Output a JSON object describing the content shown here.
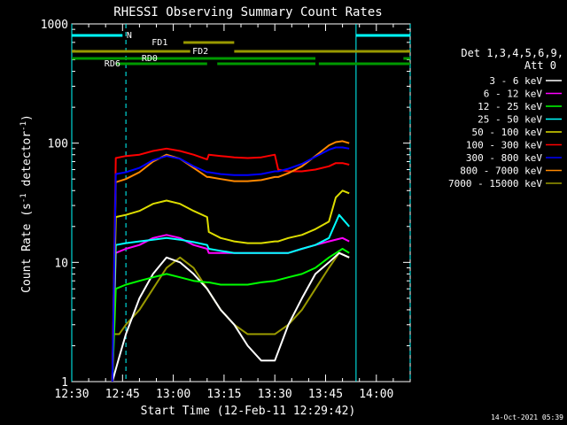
{
  "chart_data": {
    "type": "line",
    "title": "RHESSI Observing Summary Count Rates",
    "xlabel": "Start Time (12-Feb-11 12:29:42)",
    "ylabel_parts": [
      "Count Rate (s",
      "-1",
      " detector",
      "-1",
      ")"
    ],
    "x_ticks": [
      {
        "t": 0,
        "label": "12:30"
      },
      {
        "t": 15,
        "label": "12:45"
      },
      {
        "t": 30,
        "label": "13:00"
      },
      {
        "t": 45,
        "label": "13:15"
      },
      {
        "t": 60,
        "label": "13:30"
      },
      {
        "t": 75,
        "label": "13:45"
      },
      {
        "t": 90,
        "label": "14:00"
      }
    ],
    "xlim_minutes": [
      0,
      100
    ],
    "y_scale": "log",
    "ylim": [
      1,
      1000
    ],
    "y_ticks": [
      {
        "v": 1,
        "label": "1"
      },
      {
        "v": 10,
        "label": "10"
      },
      {
        "v": 100,
        "label": "100"
      },
      {
        "v": 1000,
        "label": "1000"
      }
    ],
    "legend": {
      "placement": "right",
      "header": [
        "Det 1,3,4,5,6,9,",
        "Att 0"
      ]
    },
    "series": [
      {
        "name": "3 - 6 keV",
        "color": "#ffffff",
        "x": [
          12,
          14,
          16,
          20,
          24,
          28,
          32,
          36,
          40,
          44,
          48,
          52,
          56,
          60,
          64,
          68,
          72,
          76,
          79,
          82
        ],
        "values": [
          1,
          1.6,
          2.5,
          5,
          8,
          11,
          10,
          8,
          6,
          4,
          3,
          2,
          1.5,
          1.5,
          3,
          5,
          8,
          10,
          12,
          11
        ]
      },
      {
        "name": "6 - 12 keV",
        "color": "#ff00ff",
        "x": [
          12,
          13,
          16,
          20,
          24,
          28,
          32,
          36,
          40,
          40.5,
          44,
          48,
          52,
          56,
          60,
          64,
          68,
          72,
          76,
          80,
          82
        ],
        "values": [
          1,
          12,
          13,
          14,
          16,
          17,
          16,
          14,
          13,
          12,
          12,
          12,
          12,
          12,
          12,
          12,
          13,
          14,
          15,
          16,
          15
        ]
      },
      {
        "name": "12 - 25 keV",
        "color": "#00ff00",
        "x": [
          12,
          13,
          16,
          20,
          24,
          28,
          32,
          36,
          40,
          40.5,
          44,
          48,
          52,
          56,
          60,
          64,
          68,
          72,
          76,
          80,
          82
        ],
        "values": [
          1,
          6,
          6.5,
          7,
          7.5,
          8,
          7.5,
          7,
          6.8,
          6.8,
          6.5,
          6.5,
          6.5,
          6.8,
          7,
          7.5,
          8,
          9,
          11,
          13,
          12
        ]
      },
      {
        "name": "25 - 50 keV",
        "color": "#00ffff",
        "x": [
          12,
          13,
          16,
          20,
          24,
          28,
          32,
          36,
          40,
          40.5,
          44,
          48,
          52,
          56,
          60,
          64,
          68,
          72,
          76,
          79,
          82
        ],
        "values": [
          1,
          14,
          14.5,
          15,
          15.5,
          16,
          15.5,
          14.8,
          14,
          13,
          12.5,
          12,
          12,
          12,
          12,
          12,
          13,
          14,
          16,
          25,
          20
        ]
      },
      {
        "name": "50 - 100 keV",
        "color": "#dddd00",
        "x": [
          12,
          13,
          16,
          20,
          24,
          28,
          32,
          36,
          40,
          40.5,
          44,
          48,
          52,
          56,
          60,
          61,
          64,
          68,
          72,
          76,
          78,
          80,
          82
        ],
        "values": [
          1,
          24,
          25,
          27,
          31,
          33,
          31,
          27,
          24,
          18,
          16,
          15,
          14.5,
          14.5,
          15,
          15,
          16,
          17,
          19,
          22,
          35,
          40,
          38
        ]
      },
      {
        "name": "100 - 300 keV",
        "color": "#ff0000",
        "x": [
          12,
          13,
          16,
          20,
          24,
          28,
          32,
          36,
          40,
          40.5,
          44,
          48,
          52,
          56,
          60,
          61,
          64,
          68,
          72,
          76,
          78,
          80,
          82
        ],
        "values": [
          1,
          75,
          78,
          80,
          86,
          90,
          86,
          80,
          73,
          80,
          78,
          76,
          75,
          76,
          80,
          60,
          58,
          58,
          60,
          64,
          68,
          68,
          66
        ]
      },
      {
        "name": "300 - 800 keV",
        "color": "#0000ff",
        "x": [
          12,
          13,
          16,
          20,
          24,
          28,
          32,
          36,
          40,
          40.5,
          44,
          48,
          52,
          56,
          60,
          61,
          64,
          68,
          72,
          76,
          78,
          80,
          82
        ],
        "values": [
          1,
          55,
          57,
          62,
          72,
          78,
          74,
          64,
          57,
          57,
          55,
          54,
          54,
          55,
          58,
          58,
          61,
          67,
          77,
          88,
          92,
          92,
          90
        ]
      },
      {
        "name": "800 - 7000 keV",
        "color": "#ff8800",
        "x": [
          12,
          13,
          16,
          20,
          24,
          28,
          32,
          36,
          40,
          40.5,
          44,
          48,
          52,
          56,
          60,
          61,
          64,
          68,
          72,
          76,
          78,
          80,
          82
        ],
        "values": [
          1,
          47,
          50,
          57,
          70,
          80,
          74,
          62,
          52,
          52,
          50,
          48,
          48,
          49,
          52,
          52,
          56,
          64,
          78,
          96,
          102,
          104,
          100
        ]
      },
      {
        "name": "7000 - 15000 keV",
        "color": "#999900",
        "x": [
          12,
          14,
          16,
          20,
          24,
          28,
          32,
          36,
          40,
          44,
          48,
          52,
          56,
          60,
          64,
          68,
          72,
          76,
          79,
          82
        ],
        "values": [
          2.5,
          2.5,
          3,
          4,
          6,
          9,
          11,
          9,
          6,
          4,
          3,
          2.5,
          2.5,
          2.5,
          3,
          4,
          6,
          9,
          12,
          11
        ]
      }
    ],
    "flag_bars": [
      {
        "label": "N",
        "color": "#00ffff",
        "segments": [
          [
            0,
            15
          ],
          [
            84,
            100
          ]
        ],
        "label_at": 17
      },
      {
        "label": "FD1",
        "color": "#999900",
        "segments": [
          [
            33,
            48
          ]
        ],
        "label_at": 26
      },
      {
        "label": "FD2",
        "color": "#999900",
        "segments": [
          [
            0,
            35
          ],
          [
            48,
            100
          ]
        ],
        "label_at": 38
      },
      {
        "label": "RD0",
        "color": "#009900",
        "segments": [
          [
            0,
            72
          ],
          [
            98,
            100
          ]
        ],
        "label_at": 23
      },
      {
        "label": "RD6",
        "color": "#009900",
        "segments": [
          [
            13,
            40
          ],
          [
            43,
            72
          ],
          [
            73,
            100
          ]
        ],
        "label_at": 12
      }
    ],
    "vertical_markers": [
      {
        "t": 0,
        "style": "solid",
        "color": "#00ffff"
      },
      {
        "t": 16,
        "style": "dashed",
        "color": "#00ffff"
      },
      {
        "t": 84,
        "style": "solid",
        "color": "#00ffff"
      },
      {
        "t": 100,
        "style": "dashed",
        "color": "#00ffff"
      }
    ],
    "timestamp": "14-Oct-2021 05:39"
  }
}
